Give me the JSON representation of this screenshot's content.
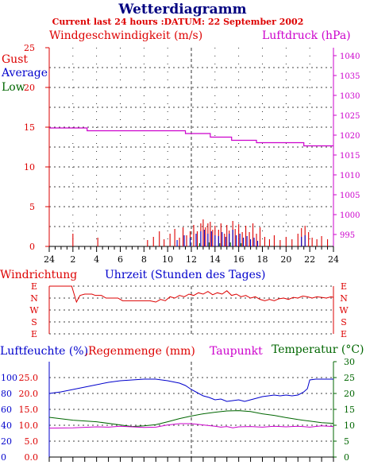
{
  "header": {
    "title": "Wetterdiagramm",
    "subtitle": "Current last 24 hours :DATUM: 22 September 2002"
  },
  "colors": {
    "red": "#dd0000",
    "blue": "#0000cc",
    "green": "#006600",
    "magenta": "#cc00cc",
    "black": "#000000"
  },
  "chart_data": [
    {
      "type": "line",
      "id": "wind",
      "left_axis_label": "Windgeschwindigkeit (m/s)",
      "right_axis_label": "Luftdruck (hPa)",
      "legend": [
        "Gust",
        "Average",
        "Low"
      ],
      "legend_position": "top-left",
      "x_ticks": [
        "24",
        "2",
        "4",
        "6",
        "8",
        "10",
        "12",
        "14",
        "16",
        "18",
        "20",
        "22",
        "24"
      ],
      "x_range": [
        0,
        24
      ],
      "ylim": [
        0,
        25
      ],
      "y_ticks": [
        "0",
        "5",
        "10",
        "15",
        "20",
        "25"
      ],
      "y2lim": [
        992,
        1042
      ],
      "y2_ticks": [
        "995",
        "1000",
        "1005",
        "1010",
        "1015",
        "1020",
        "1025",
        "1030",
        "1035",
        "1040"
      ],
      "grid": true,
      "series": [
        {
          "name": "Luftdruck",
          "axis": "right",
          "x": [
            0,
            3.2,
            3.2,
            11.5,
            11.5,
            13.6,
            13.6,
            15.4,
            15.4,
            17.5,
            17.5,
            21.5,
            21.5,
            24
          ],
          "y": [
            1021.8,
            1021.8,
            1021.1,
            1021.1,
            1020.4,
            1020.4,
            1019.5,
            1019.5,
            1018.7,
            1018.7,
            1018.1,
            1018.1,
            1017.3,
            1017.3
          ]
        },
        {
          "name": "Gust",
          "axis": "left",
          "spikes": [
            [
              2.0,
              1.6
            ],
            [
              4.1,
              1.1
            ],
            [
              8.3,
              0.8
            ],
            [
              8.8,
              1.2
            ],
            [
              9.3,
              1.9
            ],
            [
              9.7,
              0.9
            ],
            [
              10.2,
              1.6
            ],
            [
              10.6,
              2.2
            ],
            [
              11.0,
              1.1
            ],
            [
              11.3,
              2.4
            ],
            [
              11.6,
              1.4
            ],
            [
              11.9,
              1.9
            ],
            [
              12.2,
              2.7
            ],
            [
              12.5,
              1.9
            ],
            [
              12.8,
              2.9
            ],
            [
              13.0,
              3.4
            ],
            [
              13.2,
              2.4
            ],
            [
              13.4,
              2.9
            ],
            [
              13.6,
              3.1
            ],
            [
              13.8,
              2.1
            ],
            [
              14.0,
              2.6
            ],
            [
              14.3,
              2.1
            ],
            [
              14.5,
              2.9
            ],
            [
              14.8,
              1.6
            ],
            [
              15.0,
              2.7
            ],
            [
              15.2,
              2.0
            ],
            [
              15.5,
              3.2
            ],
            [
              15.7,
              2.2
            ],
            [
              16.0,
              2.8
            ],
            [
              16.3,
              1.8
            ],
            [
              16.6,
              2.6
            ],
            [
              16.9,
              1.8
            ],
            [
              17.2,
              2.9
            ],
            [
              17.5,
              1.6
            ],
            [
              17.8,
              2.4
            ],
            [
              18.2,
              1.2
            ],
            [
              18.6,
              0.9
            ],
            [
              19.0,
              1.4
            ],
            [
              19.5,
              0.8
            ],
            [
              20.0,
              1.2
            ],
            [
              20.5,
              0.9
            ],
            [
              21.0,
              1.6
            ],
            [
              21.3,
              2.3
            ],
            [
              21.6,
              2.6
            ],
            [
              21.9,
              1.8
            ],
            [
              22.2,
              1.1
            ],
            [
              22.6,
              0.9
            ],
            [
              23.0,
              1.3
            ],
            [
              23.5,
              0.9
            ]
          ]
        },
        {
          "name": "Average",
          "axis": "left",
          "spikes": [
            [
              10.8,
              0.8
            ],
            [
              11.4,
              1.4
            ],
            [
              11.9,
              1.1
            ],
            [
              12.4,
              1.6
            ],
            [
              12.8,
              1.9
            ],
            [
              13.1,
              2.1
            ],
            [
              13.4,
              1.6
            ],
            [
              13.7,
              1.9
            ],
            [
              14.0,
              1.4
            ],
            [
              14.3,
              1.3
            ],
            [
              14.6,
              1.8
            ],
            [
              14.9,
              1.2
            ],
            [
              15.2,
              1.6
            ],
            [
              15.5,
              2.1
            ],
            [
              15.8,
              1.4
            ],
            [
              16.1,
              1.6
            ],
            [
              16.4,
              1.1
            ],
            [
              16.7,
              1.3
            ],
            [
              17.0,
              0.9
            ],
            [
              17.3,
              1.1
            ],
            [
              17.6,
              0.7
            ],
            [
              21.3,
              1.2
            ],
            [
              21.6,
              1.4
            ]
          ]
        },
        {
          "name": "Low",
          "axis": "left",
          "spikes": [
            [
              12.7,
              0.4
            ],
            [
              13.5,
              0.5
            ],
            [
              14.4,
              0.4
            ],
            [
              15.3,
              0.5
            ],
            [
              16.2,
              0.4
            ]
          ]
        }
      ]
    },
    {
      "type": "line",
      "id": "direction",
      "left_axis_label": "Windrichtung",
      "x_axis_label": "Uhrzeit (Stunden des Tages)",
      "y_ticks": [
        "E",
        "N",
        "W",
        "S",
        "E"
      ],
      "grid": true,
      "series": [
        {
          "name": "Windrichtung",
          "x": [
            0,
            1.9,
            2.1,
            2.3,
            2.6,
            3.0,
            3.6,
            3.9,
            4.4,
            4.8,
            5.8,
            6.2,
            7.5,
            8.5,
            9.0,
            9.4,
            9.8,
            10.2,
            10.6,
            11.0,
            11.4,
            11.8,
            12.2,
            12.6,
            13.0,
            13.4,
            13.8,
            14.2,
            14.6,
            15.0,
            15.4,
            15.8,
            16.2,
            16.6,
            17.0,
            17.4,
            17.8,
            18.2,
            18.6,
            19.0,
            19.4,
            19.8,
            20.2,
            20.6,
            21.0,
            21.4,
            21.8,
            22.2,
            22.6,
            23.0,
            23.4,
            23.8,
            24
          ],
          "y": [
            360,
            360,
            300,
            240,
            290,
            300,
            300,
            290,
            290,
            270,
            270,
            250,
            250,
            250,
            240,
            260,
            250,
            280,
            270,
            290,
            280,
            300,
            290,
            310,
            300,
            320,
            295,
            310,
            300,
            325,
            290,
            300,
            280,
            290,
            270,
            280,
            260,
            250,
            260,
            250,
            265,
            270,
            260,
            275,
            270,
            285,
            280,
            270,
            280,
            275,
            270,
            280,
            275
          ]
        }
      ]
    },
    {
      "type": "line",
      "id": "climate",
      "left_axis_label": "Luftfeuchte (%)",
      "left_axis_label_2": "Regenmenge (mm)",
      "right_axis_label": "Temperatur (°C)",
      "legend": [
        "Taupunkt"
      ],
      "y_ticks_humidity": [
        "0",
        "20",
        "40",
        "60",
        "80",
        "100"
      ],
      "y_ticks_rain": [
        "0.0",
        "5.0",
        "10.0",
        "15.0",
        "20.0",
        "25.0"
      ],
      "y_ticks_temp": [
        "0",
        "5",
        "10",
        "15",
        "20",
        "25",
        "30"
      ],
      "ylim_temp": [
        0,
        30
      ],
      "grid": true,
      "series": [
        {
          "name": "Luftfeuchte",
          "axis": "humidity",
          "x": [
            0,
            1,
            2,
            3,
            4,
            5,
            6,
            7,
            8,
            9,
            10,
            11,
            11.5,
            12,
            12.5,
            13,
            13.5,
            14,
            14.5,
            15,
            15.5,
            16,
            16.5,
            17,
            17.5,
            18,
            18.5,
            19,
            19.5,
            20,
            20.5,
            21,
            21.5,
            21.8,
            22,
            22.5,
            23,
            24
          ],
          "y": [
            80,
            82,
            85,
            88,
            91,
            94,
            96,
            97,
            98,
            98,
            96,
            93,
            90,
            85,
            81,
            77,
            75,
            72,
            73,
            70,
            71,
            72,
            70,
            72,
            74,
            76,
            77,
            78,
            77,
            78,
            77,
            78,
            82,
            86,
            97,
            98,
            98,
            98
          ]
        },
        {
          "name": "Temperatur",
          "axis": "temp",
          "x": [
            0,
            2,
            4,
            6,
            7,
            8,
            9,
            10,
            11,
            12,
            13,
            14,
            15,
            16,
            17,
            18,
            19,
            20,
            21,
            22,
            23,
            24
          ],
          "y": [
            12.5,
            11.6,
            11.1,
            10.1,
            9.6,
            9.8,
            10.2,
            11.1,
            12.1,
            12.9,
            13.6,
            14.1,
            14.5,
            14.6,
            14.3,
            13.6,
            13.1,
            12.4,
            11.8,
            11.3,
            10.8,
            10.6
          ]
        },
        {
          "name": "Taupunkt",
          "axis": "temp",
          "x": [
            0,
            2,
            4,
            5,
            6,
            7,
            8,
            9,
            10,
            11,
            12,
            13,
            14,
            14.5,
            15,
            15.5,
            16,
            17,
            18,
            19,
            20,
            21,
            22,
            23,
            24
          ],
          "y": [
            9.1,
            9.2,
            9.5,
            9.4,
            9.7,
            9.5,
            9.3,
            9.4,
            10.1,
            10.5,
            10.5,
            10.1,
            9.7,
            9.4,
            9.6,
            9.2,
            9.5,
            9.6,
            9.4,
            9.7,
            9.5,
            9.7,
            9.4,
            9.8,
            9.6
          ]
        }
      ]
    }
  ]
}
